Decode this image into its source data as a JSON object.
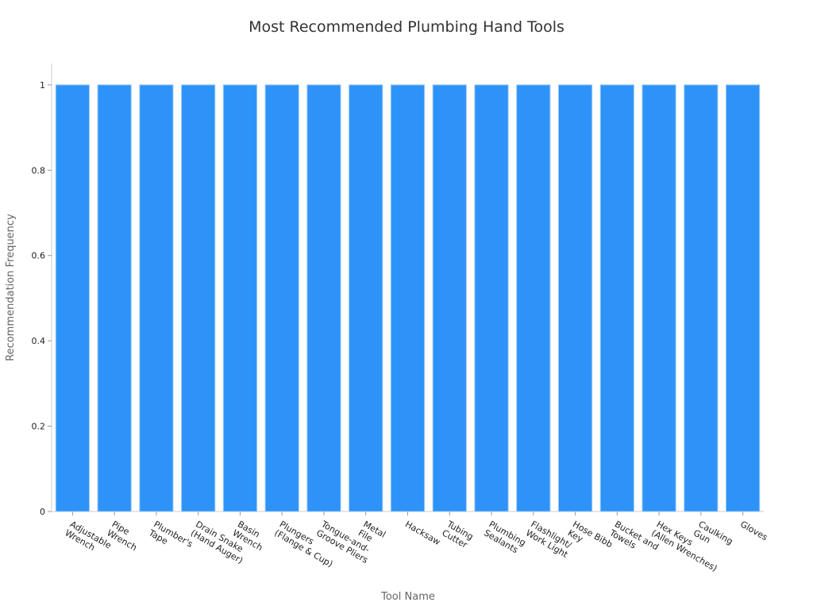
{
  "chart_data": {
    "type": "bar",
    "title": "Most Recommended Plumbing Hand Tools",
    "x_label": "Tool Name",
    "y_label": "Recommendation Frequency",
    "categories": [
      "Adjustable\nWrench",
      "Pipe\nWrench",
      "Plumber's\nTape",
      "Drain Snake\n(Hand Auger)",
      "Basin\nWrench",
      "Plungers\n(Flange & Cup)",
      "Tongue-and-\nGroove Pliers",
      "Metal\nFile",
      "Hacksaw",
      "Tubing\nCutter",
      "Plumbing\nSealants",
      "Flashlight/\nWork Light",
      "Hose Bibb\nKey",
      "Bucket and\nTowels",
      "Hex Keys\n(Allen Wrenches)",
      "Caulking\nGun",
      "Gloves"
    ],
    "values": [
      1,
      1,
      1,
      1,
      1,
      1,
      1,
      1,
      1,
      1,
      1,
      1,
      1,
      1,
      1,
      1,
      1
    ],
    "color": "#2e93f8",
    "ylim": [
      0,
      1.05
    ],
    "yticks": [
      0,
      0.2,
      0.4,
      0.6,
      0.8,
      1
    ],
    "grid": false
  }
}
